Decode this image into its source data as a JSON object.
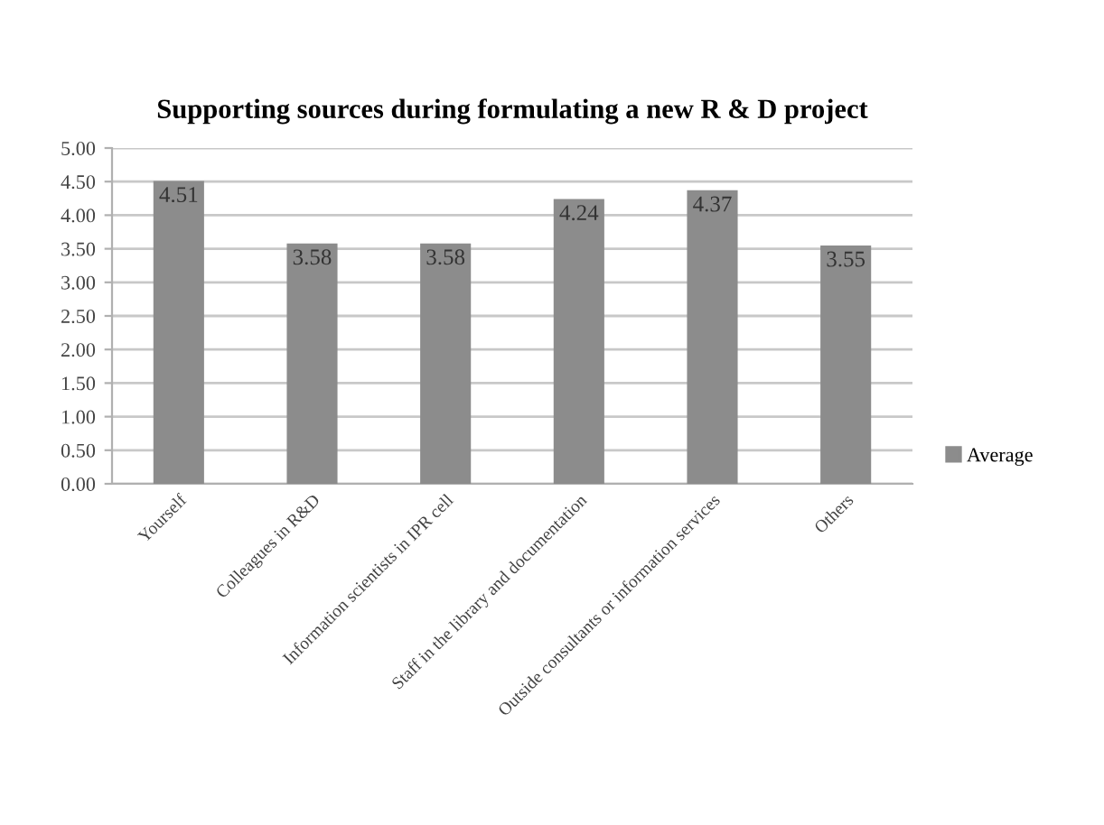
{
  "chart_data": {
    "type": "bar",
    "title": "Supporting sources during formulating a new R & D project",
    "categories": [
      "Yourself",
      "Colleagues in R&D",
      "Information scientists in IPR cell",
      "Staff in the library and documentation",
      "Outside consultants or information services",
      "Others"
    ],
    "series": [
      {
        "name": "Average",
        "color": "#8c8c8c",
        "values": [
          4.51,
          3.58,
          3.58,
          4.24,
          4.37,
          3.55
        ]
      }
    ],
    "ylim": [
      0,
      5
    ],
    "yticks": [
      {
        "value": 0,
        "label": "0.00"
      },
      {
        "value": 0.5,
        "label": "0.50"
      },
      {
        "value": 1,
        "label": "1.00"
      },
      {
        "value": 1.5,
        "label": "1.50"
      },
      {
        "value": 2,
        "label": "2.00"
      },
      {
        "value": 2.5,
        "label": "2.50"
      },
      {
        "value": 3,
        "label": "3.00"
      },
      {
        "value": 3.5,
        "label": "3.50"
      },
      {
        "value": 4,
        "label": "4.00"
      },
      {
        "value": 4.5,
        "label": "4.50"
      },
      {
        "value": 5,
        "label": "5.00"
      }
    ],
    "grid": "y",
    "legend": "right",
    "data_labels": true
  }
}
